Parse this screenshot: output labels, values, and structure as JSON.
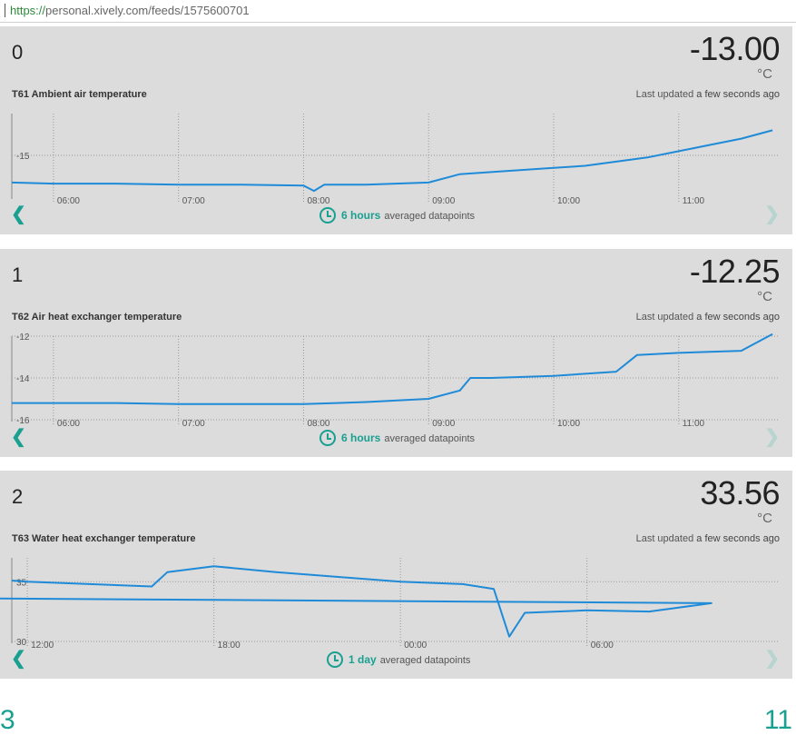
{
  "browser": {
    "url_protocol": "https://",
    "url_rest": "personal.xively.com/feeds/1575600701"
  },
  "accent_color": "#1aa090",
  "line_color": "#1f8bd8",
  "panels": [
    {
      "index": "0",
      "value": "-13.00",
      "unit": "°C",
      "name": "T61 Ambient air temperature",
      "updated_label": "Last updated",
      "updated_value": "a few seconds ago",
      "range": "6 hours",
      "range_suffix": "averaged datapoints",
      "x_ticks": [
        "06:00",
        "07:00",
        "08:00",
        "09:00",
        "10:00",
        "11:00"
      ],
      "y_ticks": [
        "-15"
      ]
    },
    {
      "index": "1",
      "value": "-12.25",
      "unit": "°C",
      "name": "T62 Air heat exchanger temperature",
      "updated_label": "Last updated",
      "updated_value": "a few seconds ago",
      "range": "6 hours",
      "range_suffix": "averaged datapoints",
      "x_ticks": [
        "06:00",
        "07:00",
        "08:00",
        "09:00",
        "10:00",
        "11:00"
      ],
      "y_ticks": [
        "-12",
        "-14",
        "-16"
      ]
    },
    {
      "index": "2",
      "value": "33.56",
      "unit": "°C",
      "name": "T63 Water heat exchanger temperature",
      "updated_label": "Last updated",
      "updated_value": "a few seconds ago",
      "range": "1 day",
      "range_suffix": "averaged datapoints",
      "x_ticks": [
        "12:00",
        "18:00",
        "00:00",
        "06:00"
      ],
      "y_ticks": [
        "35",
        "30"
      ]
    }
  ],
  "pager": {
    "left": "3",
    "right": "11"
  },
  "chart_data": [
    {
      "type": "line",
      "xlabel": "",
      "ylabel": "",
      "x_ticks": [
        "06:00",
        "07:00",
        "08:00",
        "09:00",
        "10:00",
        "11:00"
      ],
      "y_ticks": [
        -15
      ],
      "ylim": [
        -17,
        -13
      ],
      "grid": true,
      "series": [
        {
          "x": [
            "05:40",
            "06:00",
            "06:30",
            "07:00",
            "07:30",
            "08:00",
            "08:05",
            "08:10",
            "08:30",
            "09:00",
            "09:15",
            "09:30",
            "10:00",
            "10:15",
            "10:30",
            "10:45",
            "11:00",
            "11:15",
            "11:30",
            "11:45"
          ],
          "y": [
            -16.3,
            -16.35,
            -16.35,
            -16.4,
            -16.4,
            -16.45,
            -16.7,
            -16.4,
            -16.4,
            -16.3,
            -15.9,
            -15.8,
            -15.6,
            -15.5,
            -15.3,
            -15.1,
            -14.8,
            -14.5,
            -14.2,
            -13.8
          ]
        }
      ]
    },
    {
      "type": "line",
      "xlabel": "",
      "ylabel": "",
      "x_ticks": [
        "06:00",
        "07:00",
        "08:00",
        "09:00",
        "10:00",
        "11:00"
      ],
      "y_ticks": [
        -12,
        -14,
        -16
      ],
      "ylim": [
        -16,
        -12
      ],
      "grid": true,
      "series": [
        {
          "x": [
            "05:40",
            "06:00",
            "06:30",
            "07:00",
            "07:30",
            "08:00",
            "08:30",
            "09:00",
            "09:15",
            "09:20",
            "09:30",
            "10:00",
            "10:30",
            "10:40",
            "11:00",
            "11:30",
            "11:45"
          ],
          "y": [
            -15.2,
            -15.2,
            -15.2,
            -15.25,
            -15.25,
            -15.25,
            -15.15,
            -15.0,
            -14.6,
            -14.0,
            -14.0,
            -13.9,
            -13.7,
            -12.9,
            -12.8,
            -12.7,
            -11.9
          ]
        }
      ]
    },
    {
      "type": "line",
      "xlabel": "",
      "ylabel": "",
      "x_ticks": [
        "12:00",
        "18:00",
        "00:00",
        "06:00"
      ],
      "y_ticks": [
        35,
        30
      ],
      "ylim": [
        30,
        37
      ],
      "grid": true,
      "series": [
        {
          "x": [
            "11:30",
            "12:00",
            "14:00",
            "16:00",
            "16:30",
            "18:00",
            "20:00",
            "22:00",
            "00:00",
            "02:00",
            "03:00",
            "03:30",
            "04:00",
            "06:00",
            "08:00",
            "10:00",
            "11:00"
          ],
          "y": [
            35.1,
            35.0,
            34.8,
            34.6,
            35.8,
            36.3,
            35.8,
            35.4,
            35.0,
            34.8,
            34.4,
            30.4,
            32.4,
            32.6,
            32.5,
            33.2,
            33.6
          ]
        }
      ]
    }
  ]
}
